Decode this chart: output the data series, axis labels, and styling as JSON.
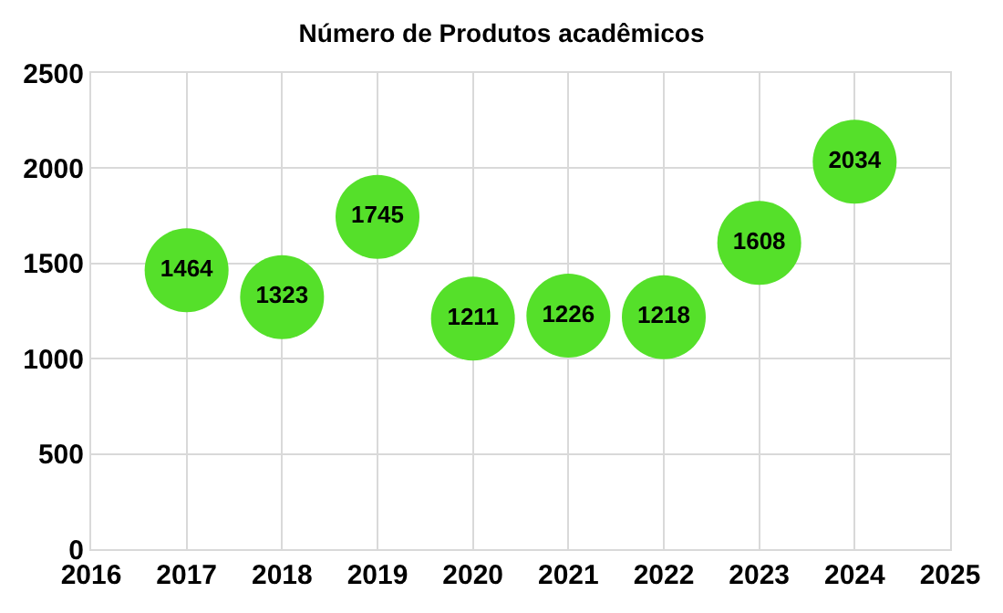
{
  "chart_data": {
    "type": "scatter",
    "title": "Número de Produtos acadêmicos",
    "x": [
      2017,
      2018,
      2019,
      2020,
      2021,
      2022,
      2023,
      2024
    ],
    "values": [
      1464,
      1323,
      1745,
      1211,
      1226,
      1218,
      1608,
      2034
    ],
    "color": "#55e02a",
    "marker": "circle",
    "data_labels": true,
    "xlim": [
      2016,
      2025
    ],
    "xticks": [
      2016,
      2017,
      2018,
      2019,
      2020,
      2021,
      2022,
      2023,
      2024,
      2025
    ],
    "ylim": [
      0,
      2500
    ],
    "yticks": [
      0,
      500,
      1000,
      1500,
      2000,
      2500
    ],
    "grid": true
  }
}
